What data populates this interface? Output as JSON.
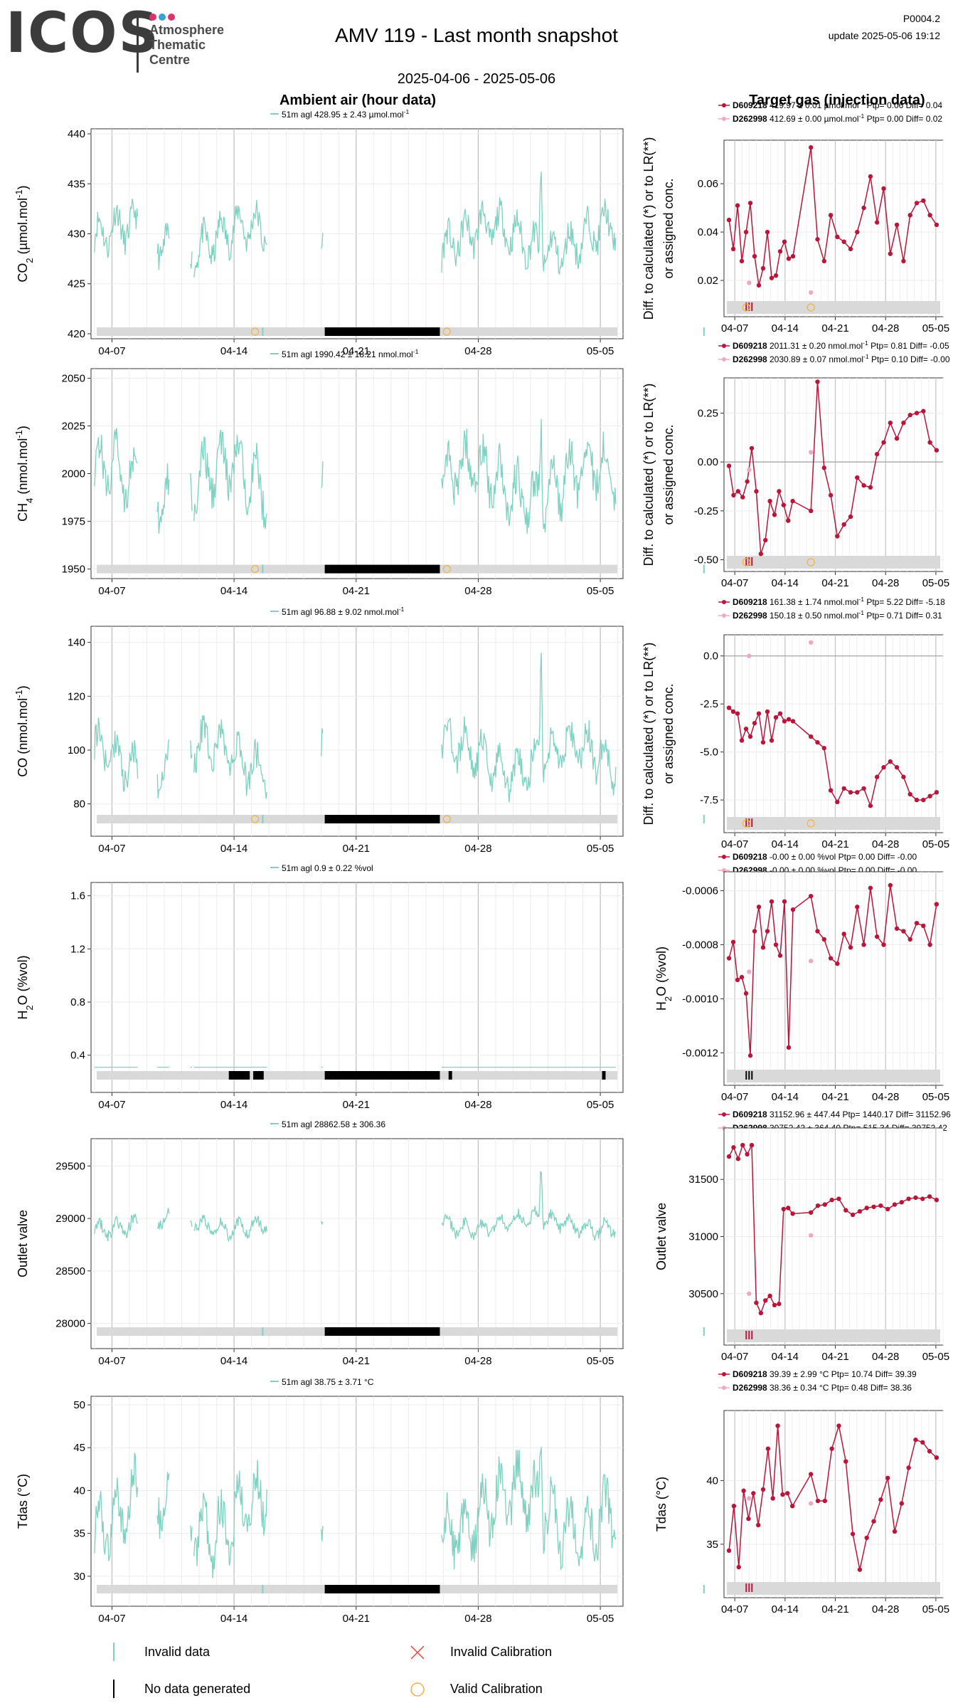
{
  "header": {
    "logo_text": "ICOS",
    "logo_sub": [
      "Atmosphere",
      "Thematic",
      "Centre"
    ],
    "logo_colors": [
      "#e0306f",
      "#3aa0d8",
      "#e0306f"
    ],
    "title": "AMV 119 - Last month snapshot",
    "date_range": "2025-04-06 - 2025-05-06",
    "code": "P0004.2",
    "update": "update  2025-05-06 19:12"
  },
  "columns": {
    "left_title": "Ambient air (hour data)",
    "right_title": "Target gas (injection data)"
  },
  "colors": {
    "ambient": "#7fd1c1",
    "target1": "#b8163a",
    "target2": "#eca9c6",
    "flag_bg": "#d9d9d9",
    "nodata": "#000000",
    "calib": "#f5b041"
  },
  "chart_data": [
    {
      "type": "line",
      "id": "co2",
      "ylabel": "CO2 (µmol.mol-1)",
      "subtitle": "51m agl 428.95 ± 2.43 µmol.mol-1",
      "yticks": [
        420,
        425,
        430,
        435,
        440
      ],
      "xticks": [
        "04-07",
        "04-14",
        "04-21",
        "04-28",
        "05-05"
      ],
      "ylim": [
        419.5,
        440.5
      ],
      "base": 429.5,
      "amp": 3.0,
      "spike": 9.5,
      "target": {
        "series": [
          {
            "name": "D609218",
            "text": "419.97 ± 0.01 µmol.mol-1 Ptp= 0.06 Diff= 0.04"
          },
          {
            "name": "D262998",
            "text": "412.69 ± 0.00 µmol.mol-1 Ptp= 0.00 Diff= 0.02"
          }
        ],
        "ylabel": [
          "Diff. to calculated (*) or to LR(**)",
          "or assigned conc."
        ],
        "yticks": [
          "0.02",
          "0.04",
          "0.06"
        ],
        "ytick_values": [
          0.02,
          0.04,
          0.06
        ],
        "ylim": [
          0.005,
          0.078
        ],
        "zero_line": false,
        "values": [
          0.045,
          0.033,
          0.051,
          0.028,
          0.04,
          0.052,
          0.03,
          0.018,
          0.025,
          0.04,
          0.021,
          0.022,
          0.032,
          0.036,
          0.029,
          0.03,
          0.075,
          0.037,
          0.028,
          0.047,
          0.038,
          0.036,
          0.033,
          0.04,
          0.05,
          0.063,
          0.044,
          0.058,
          0.031,
          0.043,
          0.028,
          0.047,
          0.052,
          0.053,
          0.047,
          0.043
        ],
        "values2": [
          0.019,
          0.015
        ]
      }
    },
    {
      "type": "line",
      "id": "ch4",
      "ylabel": "CH4 (nmol.mol-1)",
      "subtitle": "51m agl 1990.42 ± 18.21 nmol.mol-1",
      "yticks": [
        1950,
        1975,
        2000,
        2025,
        2050
      ],
      "xticks": [
        "04-07",
        "04-14",
        "04-21",
        "04-28",
        "05-05"
      ],
      "ylim": [
        1945,
        2055
      ],
      "base": 1995,
      "amp": 22,
      "spike": 50,
      "target": {
        "series": [
          {
            "name": "D609218",
            "text": "2011.31 ± 0.20 nmol.mol-1 Ptp= 0.81 Diff= -0.05"
          },
          {
            "name": "D262998",
            "text": "2030.89 ± 0.07 nmol.mol-1 Ptp= 0.10 Diff= -0.00"
          }
        ],
        "ylabel": [
          "Diff. to calculated (*) or to LR(**)",
          "or assigned conc."
        ],
        "yticks": [
          "-0.50",
          "-0.25",
          "0.00",
          "0.25"
        ],
        "ytick_values": [
          -0.5,
          -0.25,
          0.0,
          0.25
        ],
        "ylim": [
          -0.56,
          0.43
        ],
        "zero_line": true,
        "values": [
          -0.02,
          -0.17,
          -0.15,
          -0.18,
          -0.1,
          0.07,
          -0.15,
          -0.47,
          -0.4,
          -0.2,
          -0.27,
          -0.15,
          -0.22,
          -0.3,
          -0.2,
          -0.25,
          0.41,
          -0.03,
          -0.17,
          -0.38,
          -0.32,
          -0.28,
          -0.08,
          -0.12,
          -0.13,
          0.04,
          0.1,
          0.2,
          0.12,
          0.2,
          0.24,
          0.25,
          0.26,
          0.1,
          0.06
        ],
        "values2": [
          -0.04,
          0.05
        ]
      }
    },
    {
      "type": "line",
      "id": "co",
      "ylabel": "CO (nmol.mol-1)",
      "subtitle": "51m agl 96.88 ± 9.02 nmol.mol-1",
      "yticks": [
        80,
        100,
        120,
        140
      ],
      "xticks": [
        "04-07",
        "04-14",
        "04-21",
        "04-28",
        "05-05"
      ],
      "ylim": [
        68,
        146
      ],
      "base": 97,
      "amp": 12,
      "spike": 45,
      "target": {
        "series": [
          {
            "name": "D609218",
            "text": "161.38 ± 1.74 nmol.mol-1 Ptp= 5.22 Diff= -5.18"
          },
          {
            "name": "D262998",
            "text": "150.18 ± 0.50 nmol.mol-1 Ptp= 0.71 Diff= 0.31"
          }
        ],
        "ylabel": [
          "Diff. to calculated (*) or to LR(**)",
          "or assigned conc."
        ],
        "yticks": [
          "-7.5",
          "-5.0",
          "-2.5",
          "0.0"
        ],
        "ytick_values": [
          -7.5,
          -5.0,
          -2.5,
          0.0
        ],
        "ylim": [
          -9.2,
          1.1
        ],
        "zero_line": true,
        "values": [
          -2.7,
          -2.9,
          -3.0,
          -4.4,
          -3.8,
          -4.2,
          -3.5,
          -3.0,
          -4.5,
          -2.9,
          -4.4,
          -3.2,
          -3.0,
          -3.4,
          -3.3,
          -3.4,
          -4.2,
          -4.5,
          -4.8,
          -7.0,
          -7.6,
          -6.9,
          -7.1,
          -7.1,
          -6.9,
          -7.8,
          -6.3,
          -5.8,
          -5.5,
          -5.8,
          -6.3,
          -7.2,
          -7.5,
          -7.5,
          -7.3,
          -7.1
        ],
        "values2": [
          0.0,
          0.7
        ]
      }
    },
    {
      "type": "line",
      "id": "h2o",
      "ylabel": "H2O (%vol)",
      "subtitle": "51m agl 0.9 ± 0.22 %vol",
      "yticks": [
        0.4,
        0.8,
        1.2,
        1.6
      ],
      "xticks": [
        "04-07",
        "04-14",
        "04-21",
        "04-28",
        "05-05"
      ],
      "ylim": [
        0.12,
        1.7
      ],
      "base": 0.92,
      "amp": 0.25,
      "spike": 0.68,
      "target": {
        "series": [
          {
            "name": "D609218",
            "text": "-0.00 ± 0.00 %vol Ptp= 0.00 Diff= -0.00"
          },
          {
            "name": "D262998",
            "text": "-0.00 ± 0.00 %vol Ptp= 0.00 Diff= -0.00"
          }
        ],
        "ylabel": [
          "H2O (%vol)"
        ],
        "yticks": [
          "-0.0012",
          "-0.0010",
          "-0.0008",
          "-0.0006"
        ],
        "ytick_values": [
          -0.0012,
          -0.001,
          -0.0008,
          -0.0006
        ],
        "ylim": [
          -0.00132,
          -0.00053
        ],
        "zero_line": false,
        "values": [
          -0.00085,
          -0.00079,
          -0.00093,
          -0.00092,
          -0.00098,
          -0.00121,
          -0.00075,
          -0.00066,
          -0.00081,
          -0.00075,
          -0.00064,
          -0.0008,
          -0.00084,
          -0.00064,
          -0.00118,
          -0.00067,
          -0.00062,
          -0.00075,
          -0.00078,
          -0.00085,
          -0.00087,
          -0.00076,
          -0.00081,
          -0.00066,
          -0.0008,
          -0.00059,
          -0.00077,
          -0.0008,
          -0.00058,
          -0.00074,
          -0.00075,
          -0.00078,
          -0.00072,
          -0.00073,
          -0.0008,
          -0.00065
        ],
        "values2": [
          -0.0009,
          -0.00086
        ]
      }
    },
    {
      "type": "line",
      "id": "outlet",
      "ylabel": "Outlet valve",
      "subtitle": "51m agl 28862.58 ± 306.36",
      "yticks": [
        28000,
        28500,
        29000,
        29500
      ],
      "xticks": [
        "04-07",
        "04-14",
        "04-21",
        "04-28",
        "05-05"
      ],
      "ylim": [
        27760,
        29760
      ],
      "base": 28950,
      "amp": 120,
      "spike": 600,
      "target": {
        "series": [
          {
            "name": "D609218",
            "text": "31152.96 ± 447.44 Ptp= 1440.17 Diff= 31152.96"
          },
          {
            "name": "D262998",
            "text": "30752.42 ± 364.40 Ptp= 515.34 Diff= 30752.42"
          }
        ],
        "ylabel": [
          "Outlet valve"
        ],
        "yticks": [
          "30500",
          "31000",
          "31500"
        ],
        "ytick_values": [
          30500,
          31000,
          31500
        ],
        "ylim": [
          30050,
          31950
        ],
        "zero_line": false,
        "values": [
          31700,
          31780,
          31680,
          31800,
          31720,
          31800,
          30420,
          30330,
          30440,
          30480,
          30400,
          30410,
          31240,
          31250,
          31200,
          31210,
          31270,
          31280,
          31320,
          31330,
          31230,
          31190,
          31220,
          31250,
          31260,
          31270,
          31240,
          31280,
          31300,
          31330,
          31340,
          31330,
          31350,
          31320
        ],
        "values2": [
          30500,
          31010
        ]
      }
    },
    {
      "type": "line",
      "id": "tdas",
      "ylabel": "Tdas (°C)",
      "subtitle": "51m agl 38.75 ± 3.71 °C",
      "yticks": [
        30,
        35,
        40,
        45,
        50
      ],
      "xticks": [
        "04-07",
        "04-14",
        "04-21",
        "04-28",
        "05-05"
      ],
      "ylim": [
        26.5,
        51
      ],
      "base": 37.5,
      "amp": 5.5,
      "spike": 12,
      "target": {
        "series": [
          {
            "name": "D609218",
            "text": "39.39 ± 2.99 °C Ptp= 10.74 Diff= 39.39"
          },
          {
            "name": "D262998",
            "text": "38.36 ± 0.34 °C Ptp= 0.48 Diff= 38.36"
          }
        ],
        "ylabel": [
          "Tdas (°C)"
        ],
        "yticks": [
          "35",
          "40"
        ],
        "ytick_values": [
          35,
          40
        ],
        "ylim": [
          30.8,
          45.5
        ],
        "zero_line": false,
        "values": [
          34.5,
          38.0,
          33.2,
          39.2,
          37.0,
          39.0,
          36.5,
          39.3,
          42.5,
          38.6,
          44.3,
          38.9,
          39.0,
          38.0,
          40.5,
          38.4,
          38.4,
          42.5,
          44.3,
          41.5,
          35.8,
          33.0,
          35.5,
          36.8,
          38.5,
          40.2,
          36.0,
          38.2,
          41.0,
          43.2,
          43.0,
          42.3,
          41.8
        ],
        "values2": [
          38.6,
          38.2
        ]
      }
    }
  ],
  "legend": {
    "invalid_data": "Invalid data",
    "no_data": "No data generated",
    "invalid_calibration": "Invalid Calibration",
    "valid_calibration": "Valid Calibration"
  }
}
